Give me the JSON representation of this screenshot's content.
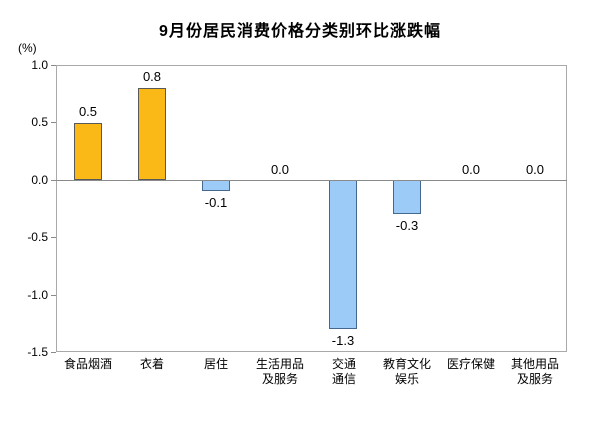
{
  "chart_data": {
    "type": "bar",
    "title": "9月份居民消费价格分类别环比涨跌幅",
    "unit_label": "(%)",
    "categories": [
      "食品烟酒",
      "衣着",
      "居住",
      "生活用品及服务",
      "交通通信",
      "教育文化娱乐",
      "医疗保健",
      "其他用品及服务"
    ],
    "category_label_lines": [
      [
        "食品烟酒"
      ],
      [
        "衣着"
      ],
      [
        "居住"
      ],
      [
        "生活用品",
        "及服务"
      ],
      [
        "交通",
        "通信"
      ],
      [
        "教育文化",
        "娱乐"
      ],
      [
        "医疗保健"
      ],
      [
        "其他用品",
        "及服务"
      ]
    ],
    "values": [
      0.5,
      0.8,
      -0.1,
      0.0,
      -1.3,
      -0.3,
      0.0,
      0.0
    ],
    "value_labels": [
      "0.5",
      "0.8",
      "-0.1",
      "0.0",
      "-1.3",
      "-0.3",
      "0.0",
      "0.0"
    ],
    "xlabel": "",
    "ylabel": "(%)",
    "ylim": [
      -1.5,
      1.0
    ],
    "yticks": [
      1.0,
      0.5,
      0.0,
      -0.5,
      -1.0,
      -1.5
    ],
    "ytick_labels": [
      "1.0",
      "0.5",
      "0.0",
      "-0.5",
      "-1.0",
      "-1.5"
    ],
    "grid": false,
    "legend": false,
    "colors": {
      "positive_bar_fill": "#FBB917",
      "positive_bar_border": "#595959",
      "negative_bar_fill": "#9CCBF8",
      "negative_bar_border": "#44688E",
      "zero_axis_line": "#8A8A8A",
      "plot_border": "#A9A9A9",
      "text": "#000000"
    }
  }
}
